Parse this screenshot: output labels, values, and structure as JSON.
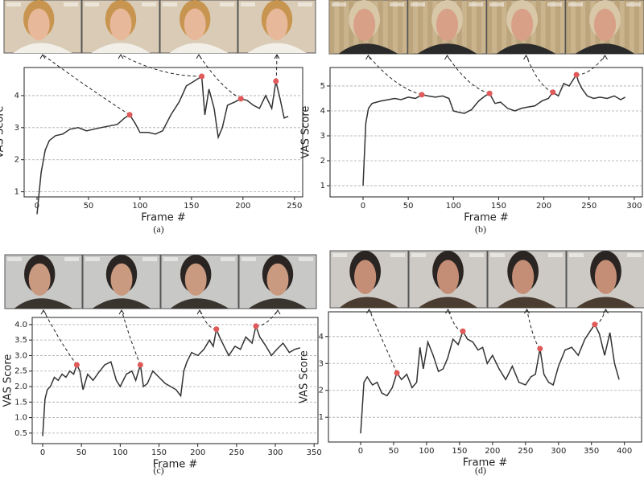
{
  "chart_data": [
    {
      "type": "line",
      "caption": "(a)",
      "xlabel": "Frame #",
      "ylabel": "VAS Score",
      "color": "#333333",
      "highlight_color": "#e05a5a",
      "grid": "y",
      "xlim": [
        -12.5,
        258
      ],
      "ylim": [
        0.84,
        4.875
      ],
      "xticks": [
        0,
        50,
        100,
        150,
        200,
        250
      ],
      "yticks": [
        1,
        2,
        3,
        4
      ],
      "x": [
        0,
        4,
        8,
        12,
        18,
        25,
        32,
        40,
        48,
        55,
        62,
        70,
        78,
        85,
        90,
        95,
        100,
        108,
        115,
        122,
        130,
        138,
        145,
        150,
        155,
        160,
        163,
        167,
        172,
        176,
        180,
        185,
        192,
        198,
        204,
        210,
        216,
        222,
        228,
        232,
        236,
        240,
        244
      ],
      "values": [
        0.3,
        1.6,
        2.3,
        2.6,
        2.75,
        2.8,
        2.95,
        3.0,
        2.9,
        2.95,
        3.0,
        3.05,
        3.1,
        3.3,
        3.4,
        3.15,
        2.85,
        2.85,
        2.8,
        2.9,
        3.4,
        3.8,
        4.3,
        4.4,
        4.5,
        4.6,
        3.4,
        4.2,
        3.6,
        2.7,
        3.0,
        3.7,
        3.8,
        3.9,
        3.85,
        3.7,
        3.6,
        4.0,
        3.6,
        4.45,
        3.9,
        3.3,
        3.35
      ],
      "highlight_x": [
        90,
        160,
        198,
        232
      ],
      "highlight_values": [
        3.4,
        4.6,
        3.9,
        4.45
      ]
    },
    {
      "type": "line",
      "caption": "(b)",
      "xlabel": "Frame #",
      "ylabel": "VAS Score",
      "color": "#333333",
      "highlight_color": "#e05a5a",
      "grid": "y",
      "xlim": [
        -36.5,
        309
      ],
      "ylim": [
        0.55,
        5.74
      ],
      "xticks": [
        0,
        50,
        100,
        150,
        200,
        250,
        300
      ],
      "yticks": [
        1,
        2,
        3,
        4,
        5
      ],
      "x": [
        0,
        3,
        6,
        10,
        15,
        20,
        28,
        35,
        42,
        50,
        58,
        65,
        72,
        80,
        88,
        95,
        100,
        105,
        112,
        120,
        128,
        135,
        140,
        146,
        152,
        160,
        168,
        175,
        182,
        190,
        198,
        205,
        210,
        216,
        222,
        228,
        236,
        238,
        242,
        248,
        255,
        262,
        270,
        278,
        285,
        290
      ],
      "values": [
        1.0,
        3.5,
        4.1,
        4.3,
        4.35,
        4.4,
        4.45,
        4.5,
        4.45,
        4.55,
        4.5,
        4.65,
        4.6,
        4.55,
        4.6,
        4.5,
        4.0,
        3.95,
        3.9,
        4.05,
        4.4,
        4.6,
        4.7,
        4.3,
        4.35,
        4.1,
        4.0,
        4.1,
        4.15,
        4.2,
        4.4,
        4.5,
        4.75,
        4.6,
        5.1,
        5.0,
        5.45,
        5.2,
        4.9,
        4.6,
        4.5,
        4.55,
        4.5,
        4.6,
        4.45,
        4.55
      ],
      "highlight_x": [
        65,
        140,
        210,
        236
      ],
      "highlight_values": [
        4.65,
        4.7,
        4.75,
        5.45
      ]
    },
    {
      "type": "line",
      "caption": "(c)",
      "xlabel": "Frame #",
      "ylabel": "VAS Score",
      "color": "#333333",
      "highlight_color": "#e05a5a",
      "grid": "y",
      "xlim": [
        -13.5,
        355
      ],
      "ylim": [
        0.16,
        4.23
      ],
      "xticks": [
        0,
        50,
        100,
        150,
        200,
        250,
        300,
        350
      ],
      "yticks": [
        0.5,
        {
          "value": 1,
          "label": "1.0"
        },
        1.5,
        {
          "value": 2,
          "label": "2.0"
        },
        2.5,
        {
          "value": 3,
          "label": "3.0"
        },
        3.5,
        {
          "value": 4,
          "label": "4.0"
        }
      ],
      "x": [
        0,
        3,
        6,
        10,
        15,
        20,
        25,
        30,
        35,
        40,
        44,
        48,
        52,
        58,
        65,
        72,
        80,
        88,
        95,
        100,
        108,
        115,
        120,
        126,
        130,
        135,
        142,
        150,
        158,
        165,
        172,
        178,
        182,
        186,
        192,
        200,
        208,
        215,
        220,
        224,
        228,
        234,
        240,
        248,
        255,
        262,
        270,
        275,
        280,
        288,
        295,
        302,
        310,
        318,
        325,
        332
      ],
      "values": [
        0.4,
        1.6,
        1.9,
        2.0,
        2.3,
        2.2,
        2.4,
        2.3,
        2.5,
        2.4,
        2.7,
        2.5,
        1.9,
        2.4,
        2.2,
        2.45,
        2.7,
        2.8,
        2.2,
        2.0,
        2.4,
        2.5,
        2.2,
        2.7,
        2.0,
        2.1,
        2.5,
        2.3,
        2.1,
        2.0,
        1.9,
        1.7,
        2.5,
        2.8,
        3.1,
        3.0,
        3.2,
        3.5,
        3.3,
        3.85,
        3.6,
        3.3,
        3.0,
        3.3,
        3.2,
        3.6,
        3.4,
        3.95,
        3.6,
        3.3,
        3.0,
        3.2,
        3.4,
        3.1,
        3.2,
        3.25
      ],
      "highlight_x": [
        44,
        126,
        224,
        275
      ],
      "highlight_values": [
        2.7,
        2.7,
        3.85,
        3.95
      ]
    },
    {
      "type": "line",
      "caption": "(d)",
      "xlabel": "Frame #",
      "ylabel": "VAS Score",
      "color": "#333333",
      "highlight_color": "#e05a5a",
      "grid": "y",
      "xlim": [
        -48.8,
        426
      ],
      "ylim": [
        0.08,
        4.92
      ],
      "xticks": [
        0,
        50,
        100,
        150,
        200,
        250,
        300,
        350,
        400
      ],
      "yticks": [
        1,
        2,
        3,
        4
      ],
      "x": [
        0,
        5,
        10,
        18,
        25,
        32,
        40,
        48,
        55,
        62,
        70,
        78,
        85,
        90,
        95,
        102,
        110,
        118,
        125,
        132,
        140,
        148,
        155,
        162,
        170,
        178,
        185,
        192,
        200,
        210,
        220,
        230,
        240,
        250,
        258,
        265,
        272,
        278,
        285,
        292,
        300,
        310,
        320,
        330,
        340,
        348,
        355,
        362,
        370,
        378,
        385,
        392
      ],
      "values": [
        0.4,
        2.3,
        2.5,
        2.2,
        2.3,
        1.9,
        1.8,
        2.1,
        2.65,
        2.4,
        2.6,
        2.1,
        2.3,
        3.6,
        2.8,
        3.8,
        3.3,
        2.7,
        2.8,
        3.2,
        3.9,
        3.7,
        4.2,
        3.9,
        3.8,
        3.5,
        3.6,
        3.0,
        3.3,
        2.8,
        2.4,
        2.9,
        2.3,
        2.2,
        2.5,
        2.6,
        3.55,
        2.6,
        2.3,
        2.2,
        2.9,
        3.5,
        3.6,
        3.3,
        3.9,
        4.2,
        4.45,
        4.1,
        3.3,
        4.15,
        3.0,
        2.4
      ],
      "highlight_x": [
        55,
        155,
        272,
        355
      ],
      "highlight_values": [
        2.65,
        4.2,
        3.55,
        4.45
      ]
    }
  ]
}
